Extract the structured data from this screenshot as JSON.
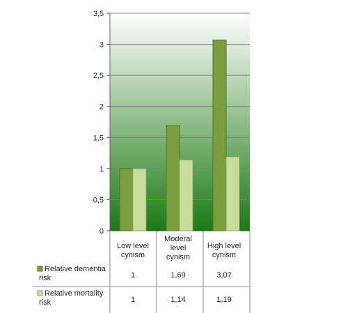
{
  "chart_data": {
    "type": "bar",
    "categories": [
      [
        "Low level",
        "cynism"
      ],
      [
        "Moderal",
        "level",
        "cynism"
      ],
      [
        "High level",
        "cynism"
      ]
    ],
    "series": [
      {
        "name_lines": [
          "Relative dementia",
          "risk"
        ],
        "values": [
          1,
          1.69,
          3.07
        ],
        "value_labels": [
          "1",
          "1,69",
          "3,07"
        ],
        "color": "#7a9e3e"
      },
      {
        "name_lines": [
          "Relative mortality",
          "risk"
        ],
        "values": [
          1,
          1.14,
          1.19
        ],
        "value_labels": [
          "1",
          "1,14",
          "1,19"
        ],
        "color": "#c8dc9c"
      }
    ],
    "ylim": [
      0,
      3.5
    ],
    "yticks": [
      0,
      0.5,
      1,
      1.5,
      2,
      2.5,
      3,
      3.5
    ],
    "ytick_labels": [
      "0",
      "0,5",
      "1",
      "1,5",
      "2",
      "2,5",
      "3",
      "3,5"
    ],
    "grid": true,
    "background_gradient": [
      "#ffffff",
      "#1d7a14"
    ],
    "legend": "data-table"
  }
}
